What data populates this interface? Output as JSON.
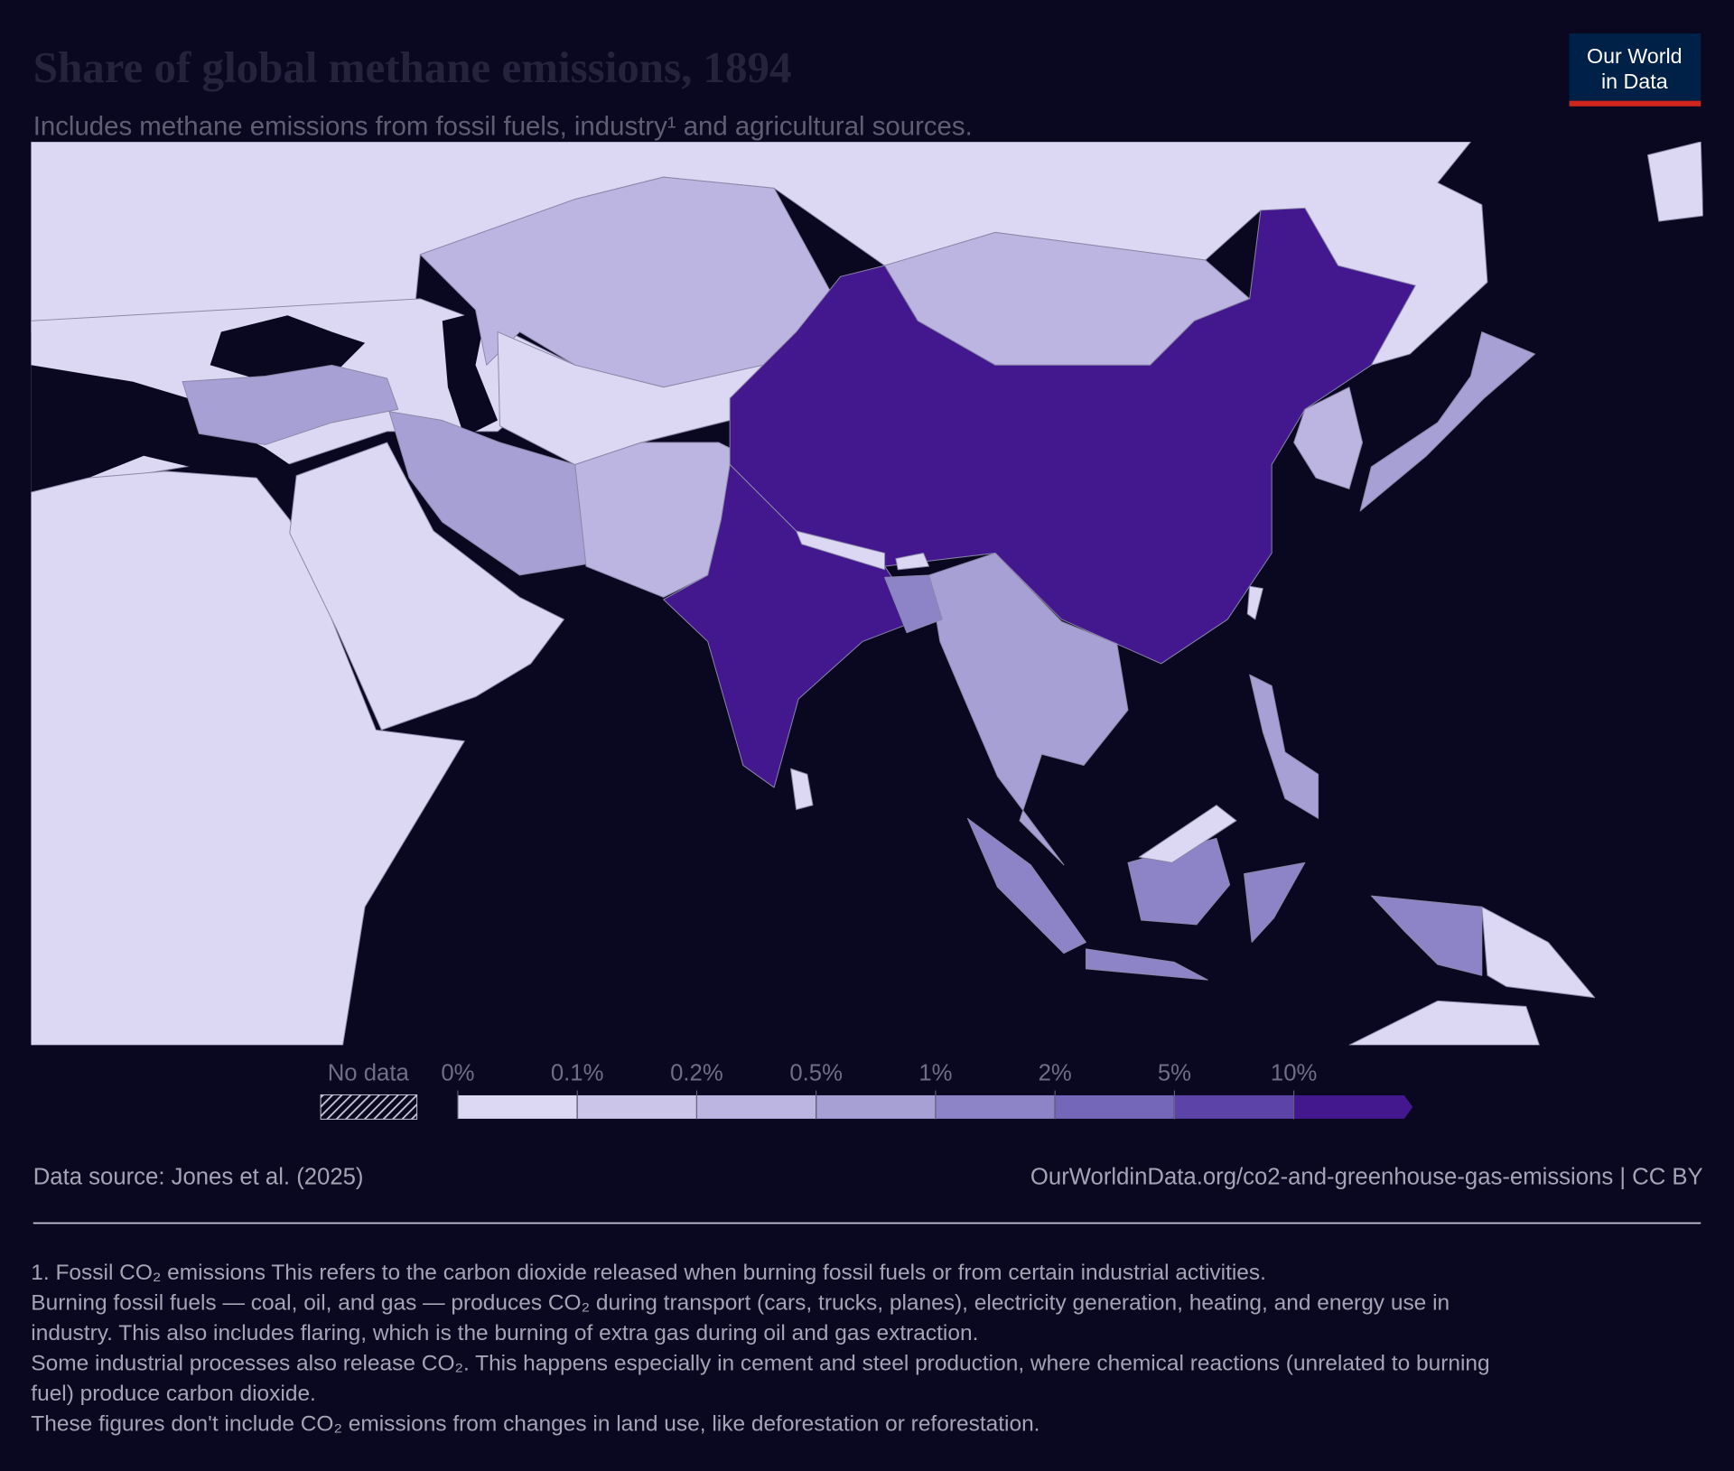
{
  "header": {
    "title": "Share of global methane emissions, 1894",
    "subtitle": "Includes methane emissions from fossil fuels, industry¹ and agricultural sources.",
    "logo": [
      "Our World",
      "in Data"
    ]
  },
  "legend": {
    "no_data": "No data",
    "ticks": [
      {
        "value": 0,
        "label": "0%"
      },
      {
        "value": 0.1,
        "label": "0.1%"
      },
      {
        "value": 0.2,
        "label": "0.2%"
      },
      {
        "value": 0.5,
        "label": "0.5%"
      },
      {
        "value": 1,
        "label": "1%"
      },
      {
        "value": 2,
        "label": "2%"
      },
      {
        "value": 5,
        "label": "5%"
      },
      {
        "value": 10,
        "label": "10%"
      }
    ],
    "colors": [
      "#dcd8f3",
      "#cbc5ea",
      "#bcb5e1",
      "#a6a0d5",
      "#8d84c8",
      "#7466b9",
      "#5c43a7",
      "#43188f"
    ]
  },
  "footer": {
    "source": "Data source: Jones et al. (2025)",
    "url": "OurWorldinData.org/co2-and-greenhouse-gas-emissions | CC BY",
    "notes": [
      "1. Fossil CO₂ emissions This refers to the carbon dioxide released when burning fossil fuels or from certain industrial activities.",
      "Burning fossil fuels — coal, oil, and gas — produces CO₂ during transport (cars, trucks, planes), electricity generation, heating, and energy use in",
      "industry. This also includes flaring, which is the burning of extra gas during oil and gas extraction.",
      "Some industrial processes also release CO₂. This happens especially in cement and steel production, where chemical reactions (unrelated to burning",
      "fuel) produce carbon dioxide.",
      "These figures don't include CO₂ emissions from changes in land use, like deforestation or reforestation."
    ]
  }
}
